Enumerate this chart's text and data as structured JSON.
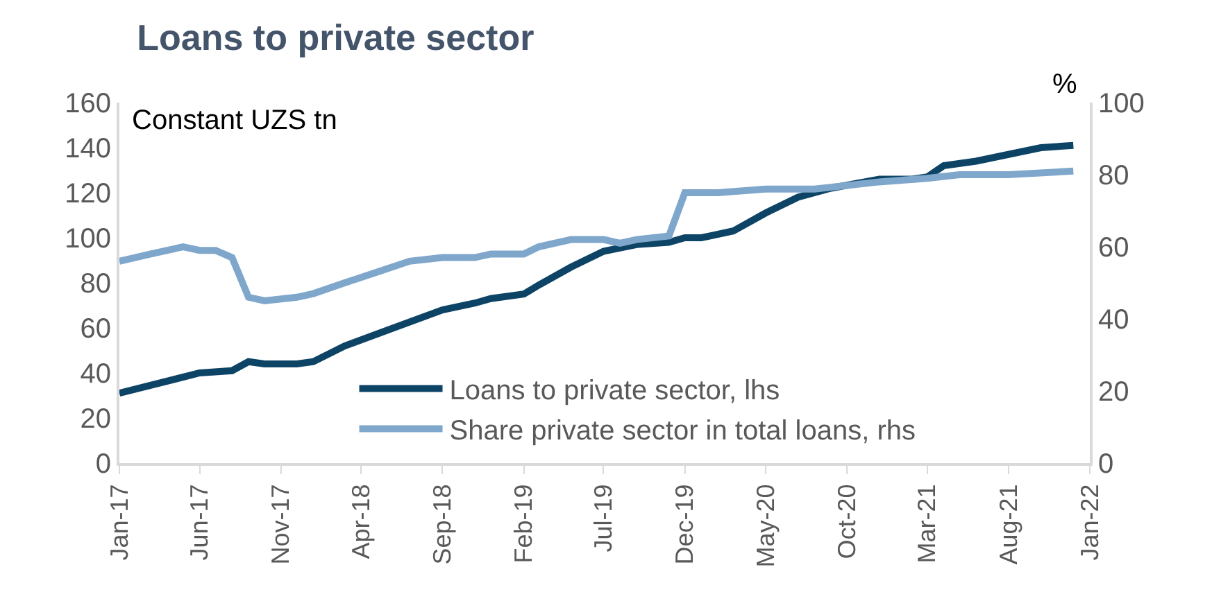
{
  "chart_data": {
    "type": "line",
    "title": "Loans to private sector",
    "ylabel": "Constant UZS tn",
    "y2label": "%",
    "series": [
      {
        "name": "Loans to private sector, lhs",
        "color": "#0d4466",
        "x": [
          "2017-01",
          "2017-06",
          "2017-08",
          "2017-09",
          "2017-10",
          "2017-12",
          "2018-01",
          "2018-03",
          "2018-06",
          "2018-09",
          "2018-11",
          "2018-12",
          "2019-02",
          "2019-03",
          "2019-05",
          "2019-07",
          "2019-09",
          "2019-11",
          "2019-12",
          "2020-01",
          "2020-03",
          "2020-05",
          "2020-07",
          "2020-09",
          "2020-12",
          "2021-02",
          "2021-03",
          "2021-04",
          "2021-06",
          "2021-08",
          "2021-10",
          "2021-12"
        ],
        "values": [
          31,
          40,
          41,
          45,
          44,
          44,
          45,
          52,
          60,
          68,
          71,
          73,
          75,
          79,
          87,
          94,
          97,
          98,
          100,
          100,
          103,
          111,
          118,
          122,
          126,
          126,
          127,
          132,
          134,
          137,
          140,
          141
        ]
      },
      {
        "name": "Share private sector in total loans, rhs",
        "color": "#7fa7cc",
        "axis": "y2",
        "x": [
          "2017-01",
          "2017-03",
          "2017-05",
          "2017-06",
          "2017-07",
          "2017-08",
          "2017-09",
          "2017-10",
          "2017-12",
          "2018-01",
          "2018-03",
          "2018-05",
          "2018-07",
          "2018-09",
          "2018-11",
          "2018-12",
          "2019-02",
          "2019-03",
          "2019-05",
          "2019-07",
          "2019-08",
          "2019-09",
          "2019-11",
          "2019-12",
          "2020-02",
          "2020-05",
          "2020-08",
          "2020-12",
          "2021-03",
          "2021-05",
          "2021-08",
          "2021-12"
        ],
        "values": [
          56,
          58,
          60,
          59,
          59,
          57,
          46,
          45,
          46,
          47,
          50,
          53,
          56,
          57,
          57,
          58,
          58,
          60,
          62,
          62,
          61,
          62,
          63,
          75,
          75,
          76,
          76,
          78,
          79,
          80,
          80,
          81
        ]
      }
    ],
    "xlim": [
      "2017-01",
      "2022-01"
    ],
    "xticks": [
      {
        "value": "2017-01",
        "label": "Jan-17"
      },
      {
        "value": "2017-06",
        "label": "Jun-17"
      },
      {
        "value": "2017-11",
        "label": "Nov-17"
      },
      {
        "value": "2018-04",
        "label": "Apr-18"
      },
      {
        "value": "2018-09",
        "label": "Sep-18"
      },
      {
        "value": "2019-02",
        "label": "Feb-19"
      },
      {
        "value": "2019-07",
        "label": "Jul-19"
      },
      {
        "value": "2019-12",
        "label": "Dec-19"
      },
      {
        "value": "2020-05",
        "label": "May-20"
      },
      {
        "value": "2020-10",
        "label": "Oct-20"
      },
      {
        "value": "2021-03",
        "label": "Mar-21"
      },
      {
        "value": "2021-08",
        "label": "Aug-21"
      },
      {
        "value": "2022-01",
        "label": "Jan-22"
      }
    ],
    "ylim": [
      0,
      160
    ],
    "yticks": [
      0,
      20,
      40,
      60,
      80,
      100,
      120,
      140,
      160
    ],
    "y2lim": [
      0,
      100
    ],
    "y2ticks": [
      0,
      20,
      40,
      60,
      80,
      100
    ],
    "grid": false,
    "legend": "bottom",
    "line_style": "solid",
    "marker": "none"
  }
}
